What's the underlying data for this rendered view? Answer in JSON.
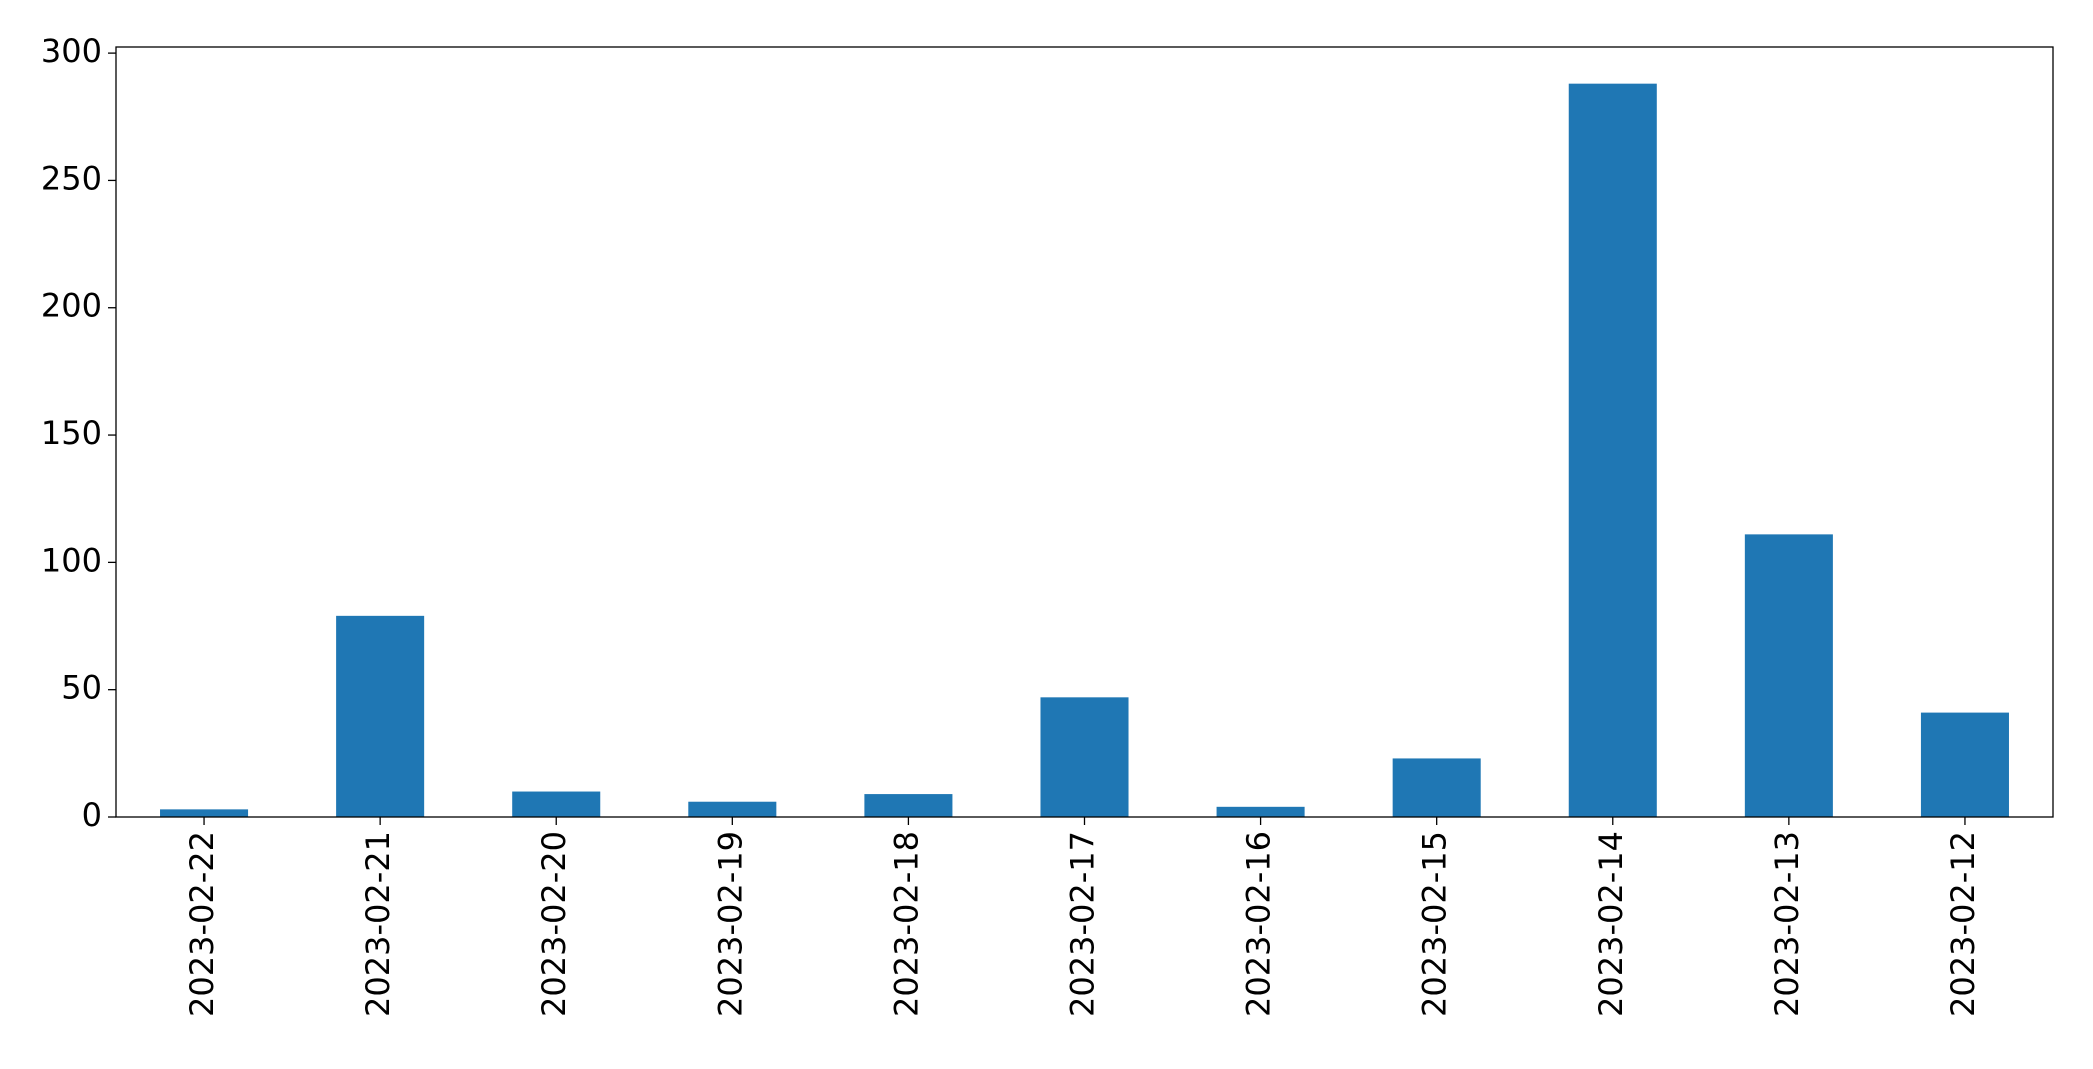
{
  "chart_data": {
    "type": "bar",
    "categories": [
      "2023-02-22",
      "2023-02-21",
      "2023-02-20",
      "2023-02-19",
      "2023-02-18",
      "2023-02-17",
      "2023-02-16",
      "2023-02-15",
      "2023-02-14",
      "2023-02-13",
      "2023-02-12"
    ],
    "values": [
      3,
      79,
      10,
      6,
      9,
      47,
      4,
      23,
      288,
      111,
      41
    ],
    "color": "#1f77b4",
    "ylim": [
      0,
      302.4
    ],
    "yticks": [
      0,
      50,
      100,
      150,
      200,
      250,
      300
    ],
    "grid": false
  }
}
